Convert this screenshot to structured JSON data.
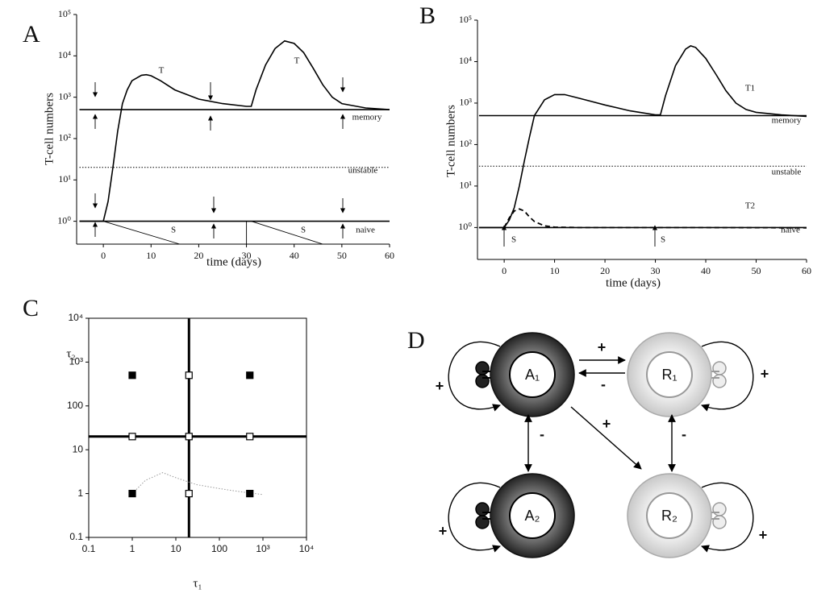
{
  "chart_data": [
    {
      "type": "line",
      "label": "A",
      "y_label": "T-cell numbers",
      "x_label": "time (days)",
      "log_y": true,
      "xlim": [
        -5.6,
        60
      ],
      "ylim": [
        0.28,
        100000
      ],
      "xticks": [
        0,
        10,
        20,
        30,
        40,
        50,
        60
      ],
      "yticks": [
        {
          "value": 1,
          "label": "10⁰"
        },
        {
          "value": 10,
          "label": "10¹"
        },
        {
          "value": 100,
          "label": "10²"
        },
        {
          "value": 1000,
          "label": "10³"
        },
        {
          "value": 10000,
          "label": "10⁴"
        },
        {
          "value": 100000,
          "label": "10⁵"
        }
      ],
      "series": [
        {
          "color": "#000000",
          "style": "solid",
          "x": [
            -5,
            0,
            1,
            2,
            3,
            4,
            5,
            6,
            8,
            9,
            10,
            12,
            15,
            20,
            25,
            30,
            31,
            32,
            34,
            36,
            38,
            40,
            42,
            44,
            46,
            48,
            50,
            55,
            60
          ],
          "values": [
            1,
            1,
            3,
            20,
            150,
            700,
            1500,
            2500,
            3400,
            3500,
            3300,
            2500,
            1500,
            900,
            700,
            600,
            600,
            1500,
            6000,
            15000,
            23000,
            20000,
            12000,
            5000,
            2000,
            1000,
            700,
            550,
            500
          ]
        },
        {
          "color": "#000000",
          "style": "solid",
          "x": [
            -5,
            60
          ],
          "values": [
            500,
            500
          ]
        },
        {
          "color": "#000000",
          "style": "dotted",
          "x": [
            -5,
            60
          ],
          "values": [
            20,
            20
          ]
        },
        {
          "color": "#000000",
          "style": "solid",
          "x": [
            -5,
            60
          ],
          "values": [
            1,
            1
          ]
        },
        {
          "color": "#000000",
          "style": "thin",
          "x": [
            0,
            16
          ],
          "values": [
            1,
            0.28
          ]
        },
        {
          "color": "#000000",
          "style": "thin",
          "x": [
            31,
            46
          ],
          "values": [
            1,
            0.28
          ]
        },
        {
          "color": "#000000",
          "style": "thin",
          "x": [
            30,
            30
          ],
          "values": [
            0.28,
            1
          ]
        }
      ],
      "annotations": [
        "T",
        "T",
        "memory",
        "unstable",
        "naive",
        "S",
        "S"
      ]
    },
    {
      "type": "line",
      "label": "B",
      "y_label": "T-cell numbers",
      "x_label": "time (days)",
      "log_y": true,
      "xlim": [
        -5.3,
        60
      ],
      "ylim": [
        0.17,
        100000
      ],
      "xticks": [
        0,
        10,
        20,
        30,
        40,
        50,
        60
      ],
      "yticks": [
        {
          "value": 1,
          "label": "10⁰"
        },
        {
          "value": 10,
          "label": "10¹"
        },
        {
          "value": 100,
          "label": "10²"
        },
        {
          "value": 1000,
          "label": "10³"
        },
        {
          "value": 10000,
          "label": "10⁴"
        },
        {
          "value": 100000,
          "label": "10⁵"
        }
      ],
      "series": [
        {
          "color": "#000000",
          "style": "solid",
          "x": [
            -5,
            0,
            1,
            2,
            3,
            4,
            5,
            6,
            8,
            10,
            12,
            15,
            20,
            25,
            30,
            31,
            32,
            34,
            36,
            37,
            38,
            40,
            42,
            44,
            46,
            48,
            50,
            55,
            60
          ],
          "values": [
            1,
            1,
            1.5,
            3,
            10,
            40,
            150,
            500,
            1200,
            1600,
            1600,
            1300,
            900,
            650,
            520,
            520,
            1500,
            8000,
            20000,
            24000,
            22000,
            12000,
            5000,
            2000,
            1000,
            700,
            600,
            520,
            480
          ]
        },
        {
          "color": "#000000",
          "style": "dashed",
          "x": [
            0,
            1,
            2,
            3,
            4,
            5,
            6,
            8,
            10,
            15,
            20,
            40,
            60
          ],
          "values": [
            1,
            1.7,
            2.5,
            2.8,
            2.5,
            1.8,
            1.4,
            1.1,
            1.02,
            1,
            1,
            1,
            0.98
          ]
        },
        {
          "color": "#000000",
          "style": "solid",
          "x": [
            -5,
            60
          ],
          "values": [
            500,
            500
          ]
        },
        {
          "color": "#000000",
          "style": "dotted",
          "x": [
            -5,
            60
          ],
          "values": [
            30,
            30
          ]
        },
        {
          "color": "#000000",
          "style": "solid",
          "x": [
            -5,
            60
          ],
          "values": [
            1,
            1
          ]
        }
      ],
      "annotations": [
        "T1",
        "T2",
        "memory",
        "unstable",
        "naive",
        "S",
        "S"
      ]
    },
    {
      "type": "scatter",
      "label": "C",
      "y_label": "τ₂",
      "x_label": "τ₁",
      "log_x": true,
      "log_y": true,
      "xlim": [
        0.1,
        10000
      ],
      "ylim": [
        0.1,
        10000
      ],
      "xticks": [
        0.1,
        1,
        10,
        100,
        {
          "value": 1000,
          "label": "10³"
        },
        {
          "value": 10000,
          "label": "10⁴"
        }
      ],
      "yticks": [
        0.1,
        1,
        10,
        100,
        {
          "value": 1000,
          "label": "10³"
        },
        {
          "value": 10000,
          "label": "10⁴"
        }
      ],
      "series": [
        {
          "color": "#000000",
          "style": "thick",
          "x": [
            20,
            20
          ],
          "values": [
            0.1,
            10000
          ]
        },
        {
          "color": "#000000",
          "style": "thick",
          "x": [
            0.1,
            10000
          ],
          "values": [
            20,
            20
          ]
        },
        {
          "color": "#999999",
          "style": "dotted",
          "x": [
            1,
            2,
            5,
            10,
            30,
            100,
            300,
            1000
          ],
          "values": [
            1,
            2,
            3,
            2.3,
            1.6,
            1.3,
            1.1,
            0.95
          ]
        },
        {
          "color": "#000000",
          "style": "filled-square",
          "x": [
            1,
            500,
            1,
            500
          ],
          "values": [
            500,
            500,
            1,
            1
          ]
        },
        {
          "color": "#000000",
          "style": "open-square",
          "x": [
            20,
            1,
            20,
            500,
            20
          ],
          "values": [
            500,
            20,
            20,
            20,
            1
          ]
        }
      ]
    }
  ],
  "diagram": {
    "label": "D",
    "nodes": [
      {
        "label": "A₁",
        "style": "dark"
      },
      {
        "label": "R₁",
        "style": "light"
      },
      {
        "label": "A₂",
        "style": "dark"
      },
      {
        "label": "R₂",
        "style": "light"
      }
    ],
    "edges": [
      {
        "sign": "+"
      },
      {
        "sign": "+"
      },
      {
        "sign": "-"
      },
      {
        "sign": "+"
      },
      {
        "sign": "-"
      },
      {
        "sign": "+"
      },
      {
        "sign": "-"
      },
      {
        "sign": "+"
      },
      {
        "sign": "+"
      }
    ]
  }
}
